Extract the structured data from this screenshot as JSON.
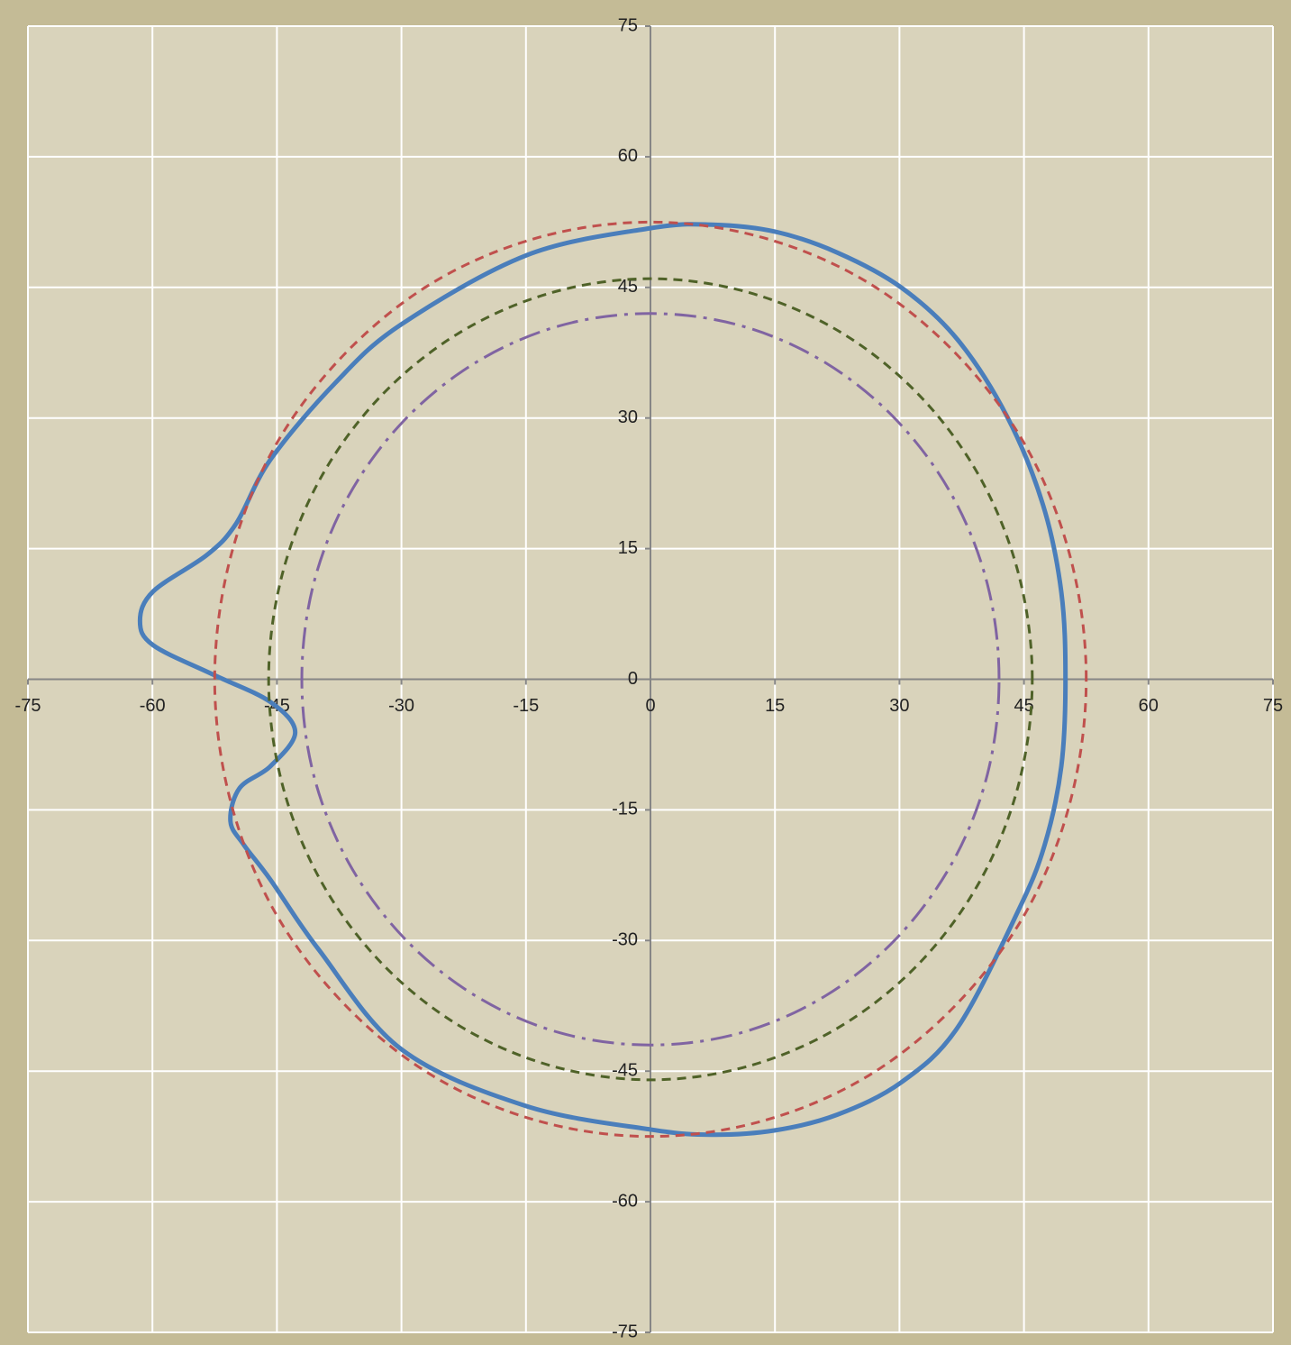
{
  "chart_data": {
    "type": "scatter",
    "xlim": [
      -75,
      75
    ],
    "ylim": [
      -75,
      75
    ],
    "xticks": [
      -75,
      -60,
      -45,
      -30,
      -15,
      0,
      15,
      30,
      45,
      60,
      75
    ],
    "yticks": [
      -75,
      -60,
      -45,
      -30,
      -15,
      0,
      15,
      30,
      45,
      60,
      75
    ],
    "grid": true,
    "series": [
      {
        "color": "#4a7ebb",
        "line": "solid",
        "closed": true,
        "x": [
          0,
          7.4,
          15,
          22.5,
          30.2,
          37,
          43,
          47.3,
          49.5,
          50,
          49.5,
          47.5,
          44.3,
          37,
          30.2,
          22.5,
          15,
          7.4,
          0,
          -15,
          -30,
          -40,
          -45.8,
          -49,
          -50.6,
          -49.5,
          -45.8,
          -42.8,
          -45.8,
          -52.6,
          -59.9,
          -61.5,
          -59.9,
          -53.4,
          -49.9,
          -45.8,
          -38,
          -30.1,
          -14.9
        ],
        "y": [
          51.8,
          52.2,
          51.4,
          49,
          45,
          39,
          30.1,
          20,
          10,
          0,
          -10,
          -19,
          -26.6,
          -40,
          -46.3,
          -50,
          -51.8,
          -52.3,
          -51.7,
          -49,
          -42.5,
          -31,
          -23,
          -19,
          -16.3,
          -12.5,
          -10,
          -6.1,
          -2.6,
          0.5,
          3.9,
          6.7,
          10.1,
          14.3,
          17.9,
          25.2,
          34,
          40.7,
          48.7
        ]
      },
      {
        "color": "#c0504d",
        "line": "dash",
        "closed": true,
        "x": [
          52.5,
          50.7,
          45.5,
          37.1,
          26.3,
          13.6,
          0,
          -13.6,
          -26.3,
          -37.1,
          -45.5,
          -50.7,
          -52.5,
          -50.7,
          -45.5,
          -37.1,
          -26.3,
          -13.6,
          0,
          13.6,
          26.3,
          37.1,
          45.5,
          50.7
        ],
        "y": [
          0,
          13.6,
          26.3,
          37.1,
          45.5,
          50.7,
          52.5,
          50.7,
          45.5,
          37.1,
          26.3,
          13.6,
          0,
          -13.6,
          -26.3,
          -37.1,
          -45.5,
          -50.7,
          -52.5,
          -50.7,
          -45.5,
          -37.1,
          -26.3,
          -13.6
        ]
      },
      {
        "color": "#4f6228",
        "line": "dash",
        "closed": true,
        "x": [
          46,
          44.4,
          39.8,
          32.5,
          23,
          11.9,
          0,
          -11.9,
          -23,
          -32.5,
          -39.8,
          -44.4,
          -46,
          -44.4,
          -39.8,
          -32.5,
          -23,
          -11.9,
          0,
          11.9,
          23,
          32.5,
          39.8,
          44.4
        ],
        "y": [
          0,
          11.9,
          23,
          32.5,
          39.8,
          44.4,
          46,
          44.4,
          39.8,
          32.5,
          23,
          11.9,
          0,
          -11.9,
          -23,
          -32.5,
          -39.8,
          -44.4,
          -46,
          -44.4,
          -39.8,
          -32.5,
          -23,
          -11.9
        ]
      },
      {
        "color": "#8064a2",
        "line": "dashdot",
        "closed": true,
        "x": [
          42,
          40.6,
          36.4,
          29.7,
          21,
          10.9,
          0,
          -10.9,
          -21,
          -29.7,
          -36.4,
          -40.6,
          -42,
          -40.6,
          -36.4,
          -29.7,
          -21,
          -10.9,
          0,
          10.9,
          21,
          29.7,
          36.4,
          40.6
        ],
        "y": [
          0,
          10.9,
          21,
          29.7,
          36.4,
          40.6,
          42,
          40.6,
          36.4,
          29.7,
          21,
          10.9,
          0,
          -10.9,
          -21,
          -29.7,
          -36.4,
          -40.6,
          -42,
          -40.6,
          -36.4,
          -29.7,
          -21,
          -10.9
        ]
      }
    ]
  }
}
